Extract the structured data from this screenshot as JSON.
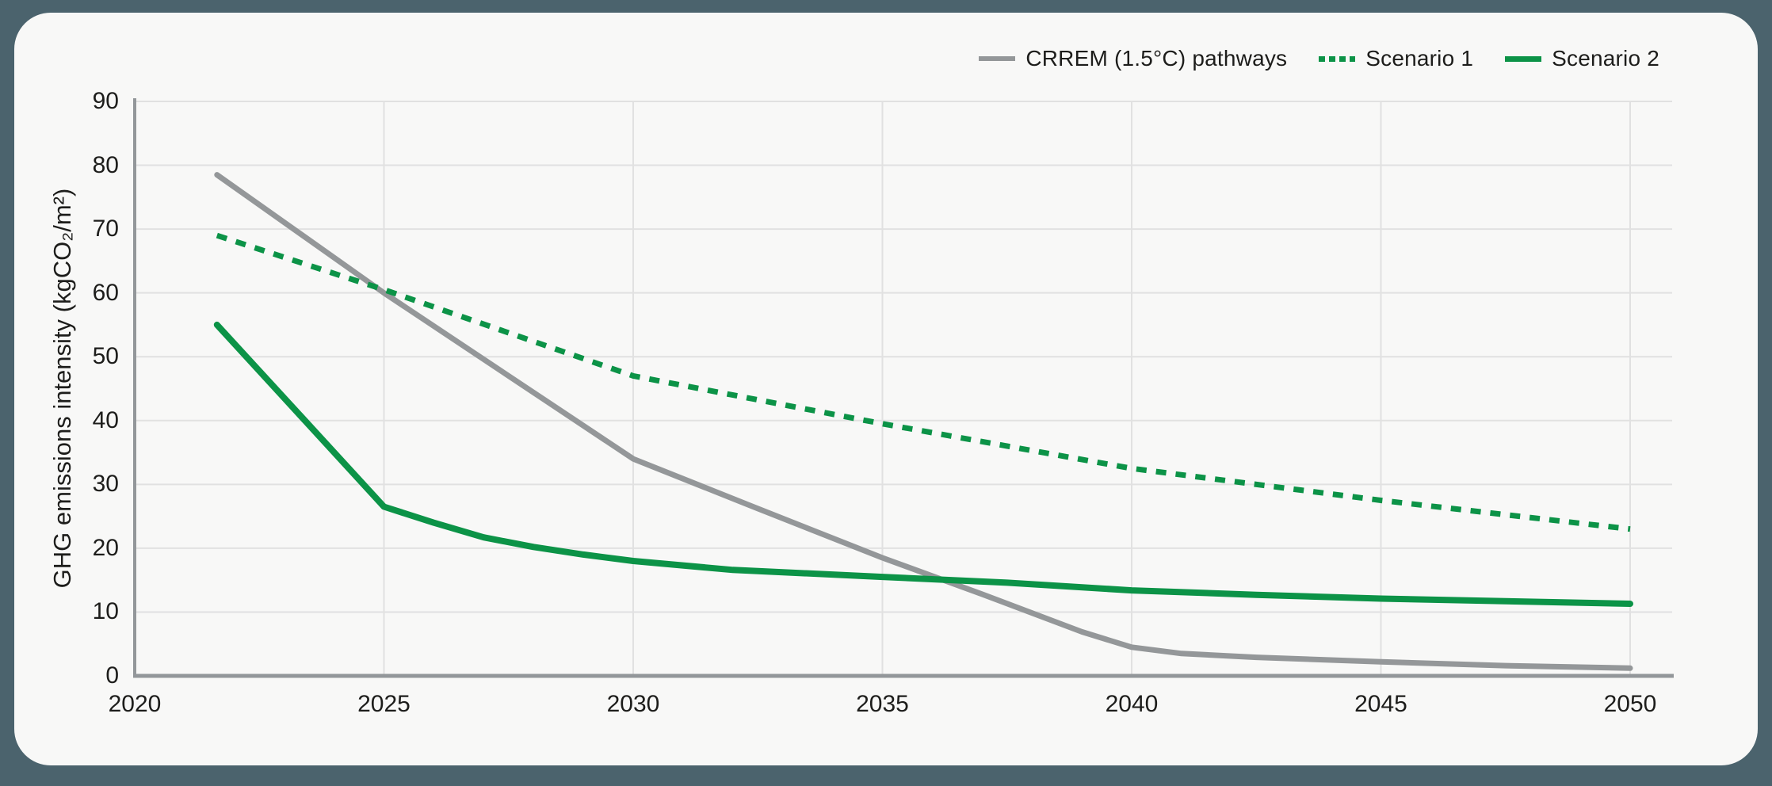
{
  "page": {
    "background_color": "#4b636d",
    "card_color": "#f8f8f7",
    "grid_color": "#e1e1e1",
    "axis_color": "#93979a",
    "text_color": "#1d1d1b"
  },
  "legend": {
    "items": [
      {
        "label": "CRREM (1.5°C) pathways",
        "color": "#949799",
        "style": "solid"
      },
      {
        "label": "Scenario 1",
        "color": "#0c9347",
        "style": "dotted"
      },
      {
        "label": "Scenario 2",
        "color": "#0c9347",
        "style": "solid"
      }
    ]
  },
  "chart_data": {
    "type": "line",
    "title": "",
    "xlabel": "",
    "ylabel": "GHG emissions intensity (kgCO₂/m²)",
    "xlim": [
      2020,
      2050.85
    ],
    "ylim": [
      0,
      90
    ],
    "xticks": [
      2020,
      2025,
      2030,
      2035,
      2040,
      2045,
      2050
    ],
    "yticks": [
      0,
      10,
      20,
      30,
      40,
      50,
      60,
      70,
      80,
      90
    ],
    "grid": true,
    "legend_position": "top-right",
    "series": [
      {
        "name": "CRREM (1.5°C) pathways",
        "color": "#949799",
        "dash": "solid",
        "stroke_width": 7,
        "points": [
          [
            2021.65,
            78.5
          ],
          [
            2025,
            60
          ],
          [
            2030,
            34
          ],
          [
            2032.5,
            26.2
          ],
          [
            2035,
            18.5
          ],
          [
            2037,
            12.8
          ],
          [
            2039,
            6.9
          ],
          [
            2040,
            4.5
          ],
          [
            2041,
            3.5
          ],
          [
            2042.5,
            2.9
          ],
          [
            2045,
            2.2
          ],
          [
            2047.5,
            1.6
          ],
          [
            2050,
            1.2
          ]
        ]
      },
      {
        "name": "Scenario 1",
        "color": "#0c9347",
        "dash": "dotted",
        "stroke_width": 7,
        "points": [
          [
            2021.65,
            69
          ],
          [
            2025,
            60.5
          ],
          [
            2030,
            47
          ],
          [
            2035,
            39.5
          ],
          [
            2040,
            32.5
          ],
          [
            2045,
            27.5
          ],
          [
            2050,
            23
          ]
        ]
      },
      {
        "name": "Scenario 2",
        "color": "#0c9347",
        "dash": "solid",
        "stroke_width": 8,
        "points": [
          [
            2021.65,
            55
          ],
          [
            2025,
            26.5
          ],
          [
            2026,
            24
          ],
          [
            2027,
            21.7
          ],
          [
            2028,
            20.2
          ],
          [
            2029,
            19
          ],
          [
            2030,
            18
          ],
          [
            2032,
            16.6
          ],
          [
            2035,
            15.5
          ],
          [
            2037.5,
            14.6
          ],
          [
            2040,
            13.4
          ],
          [
            2042.5,
            12.7
          ],
          [
            2045,
            12.1
          ],
          [
            2047.5,
            11.7
          ],
          [
            2050,
            11.3
          ]
        ]
      }
    ]
  }
}
